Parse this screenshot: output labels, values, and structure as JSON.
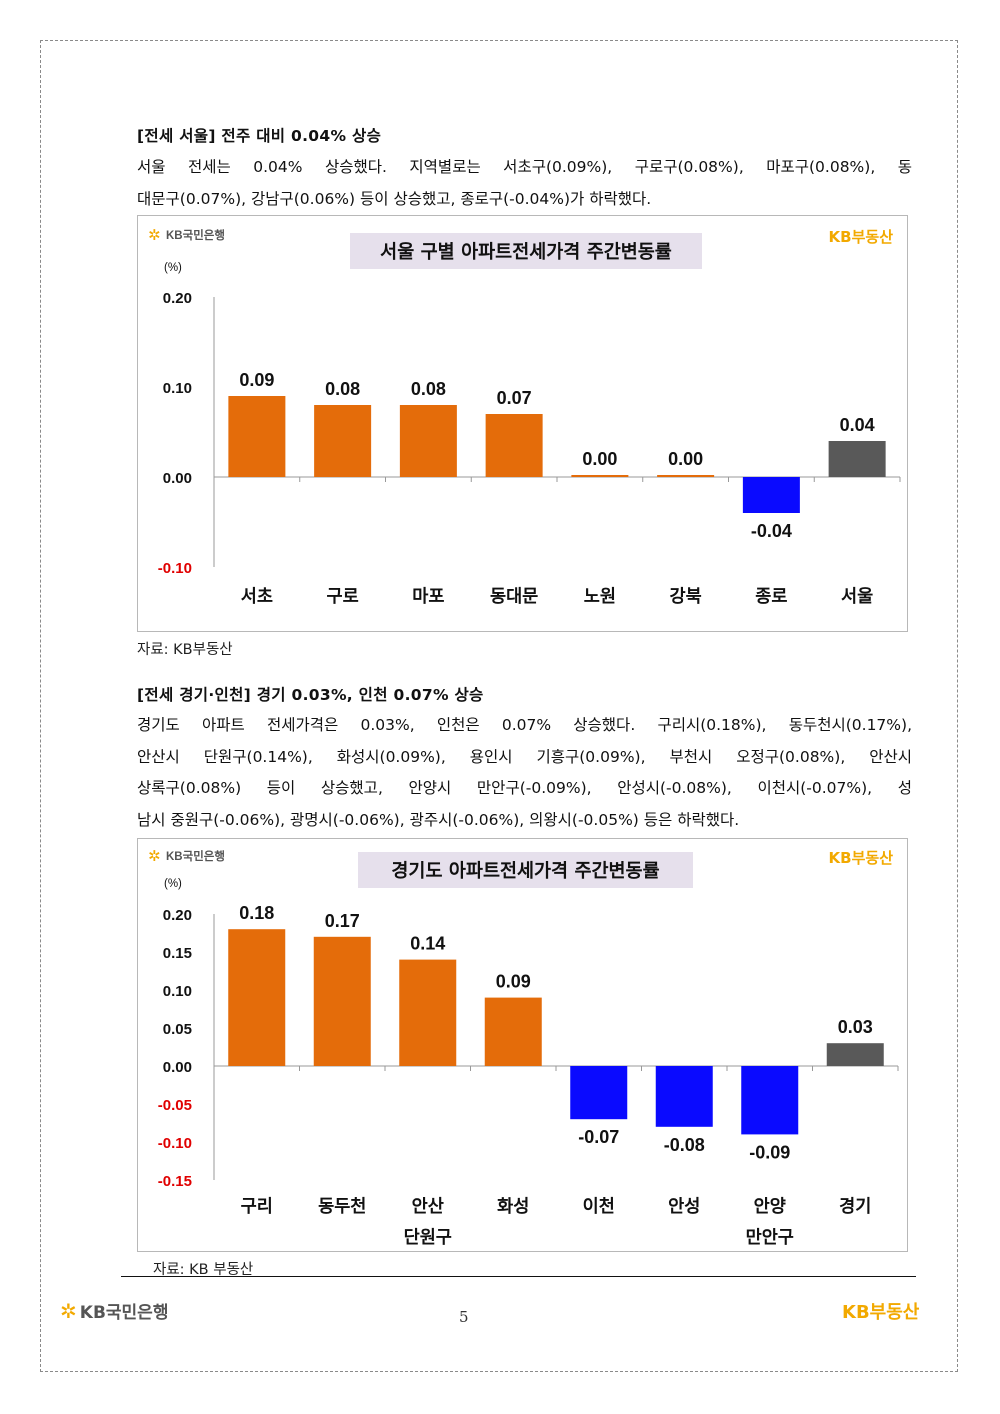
{
  "seoul_section": {
    "heading": "[전세 서울] 전주 대비 0.04% 상승",
    "paragraph_lines": [
      "서울 전세는 0.04% 상승했다. 지역별로는 서초구(0.09%), 구로구(0.08%), 마포구(0.08%), 동",
      "대문구(0.07%), 강남구(0.06%) 등이 상승했고, 종로구(-0.04%)가 하락했다."
    ],
    "source": "자료: KB부동산"
  },
  "gyeonggi_section": {
    "heading": "[전세 경기·인천] 경기 0.03%, 인천 0.07% 상승",
    "paragraph_lines": [
      "경기도 아파트 전세가격은 0.03%, 인천은 0.07% 상승했다. 구리시(0.18%), 동두천시(0.17%),",
      "안산시 단원구(0.14%), 화성시(0.09%), 용인시 기흥구(0.09%), 부천시 오정구(0.08%), 안산시",
      "상록구(0.08%) 등이 상승했고, 안양시 만안구(-0.09%), 안성시(-0.08%), 이천시(-0.07%), 성",
      "남시 중원구(-0.06%), 광명시(-0.06%), 광주시(-0.06%), 의왕시(-0.05%) 등은 하락했다."
    ],
    "source": "자료: KB 부동산"
  },
  "logos": {
    "kb_bank": "KB국민은행",
    "kb_realestate": "KB부동산"
  },
  "footer": {
    "page_number": "5",
    "left_logo": "KB국민은행",
    "right_logo": "KB부동산"
  },
  "colors": {
    "positive_bar": "#e46c0a",
    "negative_bar": "#0a0aff",
    "total_bar": "#595959",
    "title_bg": "#e6e0ec",
    "negative_tick": "#e00000",
    "logo_yellow": "#f2a900"
  },
  "chart_data": [
    {
      "type": "bar",
      "title": "서울 구별 아파트전세가격 주간변동률",
      "unit_label": "(%)",
      "categories": [
        [
          "서초"
        ],
        [
          "구로"
        ],
        [
          "마포"
        ],
        [
          "동대문"
        ],
        [
          "노원"
        ],
        [
          "강북"
        ],
        [
          "종로"
        ],
        [
          "서울"
        ]
      ],
      "values": [
        0.09,
        0.08,
        0.08,
        0.07,
        0.0,
        0.0,
        -0.04,
        0.04
      ],
      "value_labels": [
        "0.09",
        "0.08",
        "0.08",
        "0.07",
        "0.00",
        "0.00",
        "-0.04",
        "0.04"
      ],
      "bar_kinds": [
        "pos",
        "pos",
        "pos",
        "pos",
        "pos",
        "pos",
        "neg",
        "total"
      ],
      "ylim": [
        -0.1,
        0.2
      ],
      "yticks": [
        0.2,
        0.1,
        0.0,
        -0.1
      ],
      "ytick_labels": [
        "0.20",
        "0.10",
        "0.00",
        "-0.10"
      ],
      "grid": false
    },
    {
      "type": "bar",
      "title": "경기도 아파트전세가격 주간변동률",
      "unit_label": "(%)",
      "categories": [
        [
          "구리"
        ],
        [
          "동두천"
        ],
        [
          "안산",
          "단원구"
        ],
        [
          "화성"
        ],
        [
          "이천"
        ],
        [
          "안성"
        ],
        [
          "안양",
          "만안구"
        ],
        [
          "경기"
        ]
      ],
      "values": [
        0.18,
        0.17,
        0.14,
        0.09,
        -0.07,
        -0.08,
        -0.09,
        0.03
      ],
      "value_labels": [
        "0.18",
        "0.17",
        "0.14",
        "0.09",
        "-0.07",
        "-0.08",
        "-0.09",
        "0.03"
      ],
      "bar_kinds": [
        "pos",
        "pos",
        "pos",
        "pos",
        "neg",
        "neg",
        "neg",
        "total"
      ],
      "ylim": [
        -0.15,
        0.2
      ],
      "yticks": [
        0.2,
        0.15,
        0.1,
        0.05,
        0.0,
        -0.05,
        -0.1,
        -0.15
      ],
      "ytick_labels": [
        "0.20",
        "0.15",
        "0.10",
        "0.05",
        "0.00",
        "-0.05",
        "-0.10",
        "-0.15"
      ],
      "grid": false
    }
  ]
}
